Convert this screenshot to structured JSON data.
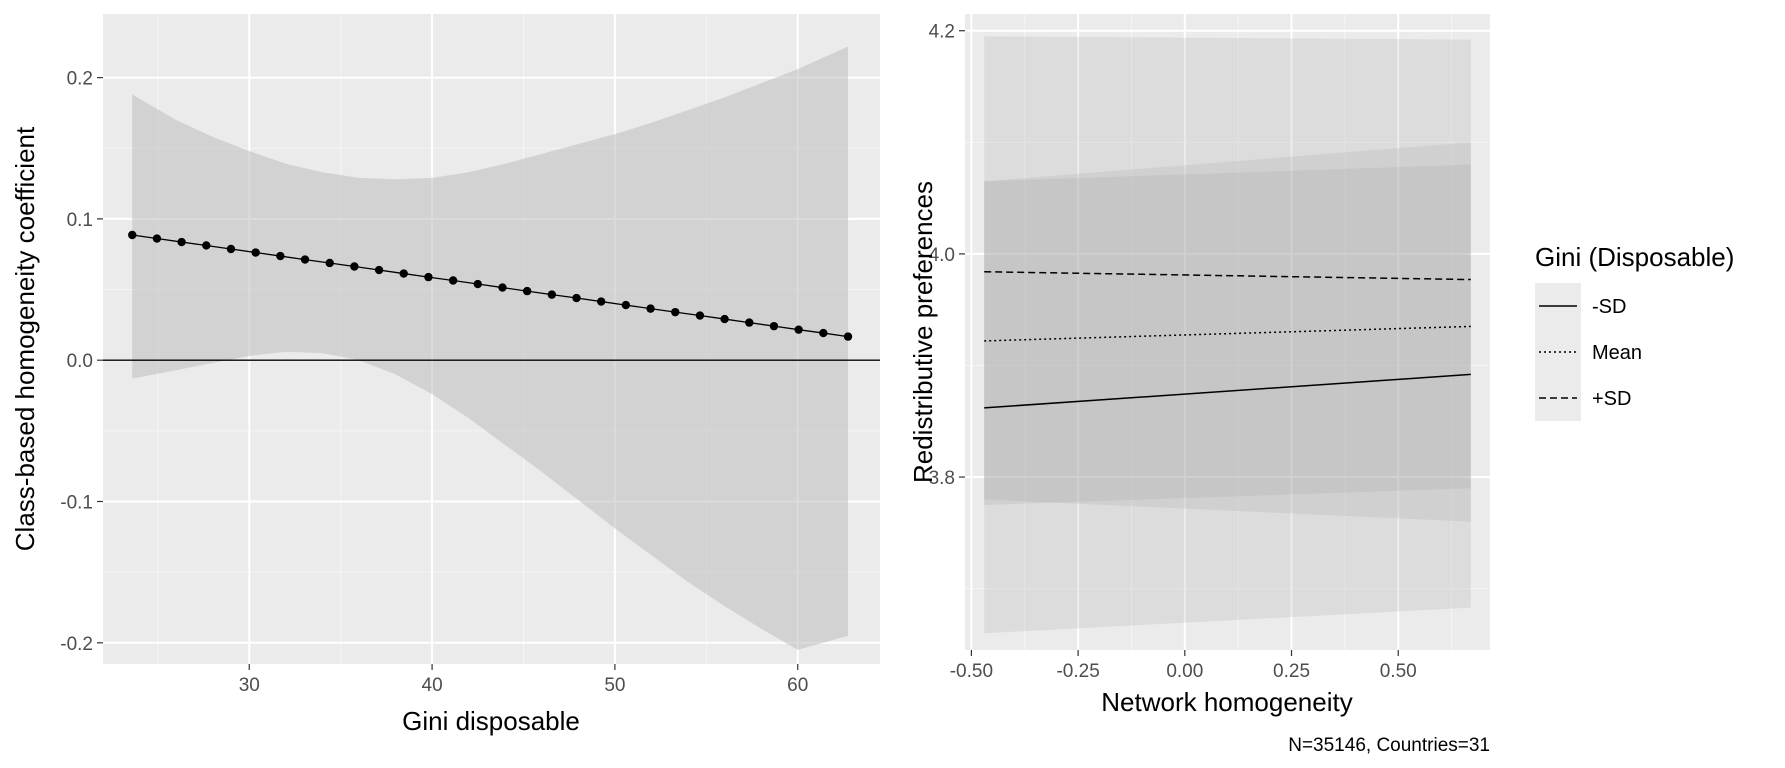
{
  "chart_data": [
    {
      "type": "line",
      "xlabel": "Gini disposable",
      "ylabel": "Class-based homogeneity coefficient",
      "xlim": [
        22,
        64.5
      ],
      "ylim": [
        -0.215,
        0.245
      ],
      "xticks": [
        30,
        40,
        50,
        60
      ],
      "xtick_labels": [
        "30",
        "40",
        "50",
        "60"
      ],
      "yticks": [
        -0.2,
        -0.1,
        0.0,
        0.1,
        0.2
      ],
      "ytick_labels": [
        "-0.2",
        "-0.1",
        "0.0",
        "0.1",
        "0.2"
      ],
      "grid": true,
      "reference_line_y": 0,
      "points": {
        "x": [
          23.6,
          24.95,
          26.3,
          27.65,
          29.0,
          30.35,
          31.7,
          33.05,
          34.4,
          35.75,
          37.1,
          38.45,
          39.8,
          41.15,
          42.5,
          43.85,
          45.2,
          46.55,
          47.9,
          49.25,
          50.6,
          51.95,
          53.3,
          54.65,
          56.0,
          57.35,
          58.7,
          60.05,
          61.4,
          62.75
        ],
        "y": [
          0.0886,
          0.0861,
          0.0836,
          0.0812,
          0.0787,
          0.0762,
          0.0737,
          0.0712,
          0.0688,
          0.0663,
          0.0638,
          0.0613,
          0.0588,
          0.0564,
          0.0539,
          0.0514,
          0.0489,
          0.0464,
          0.044,
          0.0415,
          0.039,
          0.0365,
          0.034,
          0.0316,
          0.0291,
          0.0266,
          0.0241,
          0.0216,
          0.0192,
          0.0167
        ]
      },
      "ribbon": {
        "x": [
          23.6,
          26,
          28,
          30,
          32,
          34,
          36,
          38,
          40,
          42,
          44,
          46,
          48,
          50,
          52,
          54,
          56,
          58,
          60,
          62.75
        ],
        "lower": [
          -0.013,
          -0.007,
          -0.002,
          0.003,
          0.006,
          0.005,
          0.0,
          -0.01,
          -0.024,
          -0.041,
          -0.06,
          -0.079,
          -0.099,
          -0.119,
          -0.138,
          -0.157,
          -0.174,
          -0.19,
          -0.205,
          -0.195
        ],
        "upper": [
          0.188,
          0.17,
          0.158,
          0.148,
          0.139,
          0.133,
          0.129,
          0.128,
          0.129,
          0.133,
          0.139,
          0.146,
          0.153,
          0.16,
          0.168,
          0.177,
          0.186,
          0.196,
          0.206,
          0.222
        ]
      }
    },
    {
      "type": "line",
      "xlabel": "Network homogeneity",
      "ylabel": "Redistributive preferences",
      "xlim": [
        -0.515,
        0.715
      ],
      "ylim": [
        3.645,
        4.215
      ],
      "xticks": [
        -0.5,
        -0.25,
        0.0,
        0.25,
        0.5
      ],
      "xtick_labels": [
        "-0.50",
        "-0.25",
        "0.00",
        "0.25",
        "0.50"
      ],
      "yticks": [
        3.8,
        4.0,
        4.2
      ],
      "ytick_labels": [
        "3.8",
        "4.0",
        "4.2"
      ],
      "grid": true,
      "legend": {
        "title": "Gini (Disposable)",
        "position": "right",
        "entries": [
          "-SD",
          "Mean",
          "+SD"
        ]
      },
      "series": [
        {
          "name": "-SD",
          "linetype": "solid",
          "x": [
            -0.47,
            0.67
          ],
          "y": [
            3.862,
            3.892
          ],
          "ribbon_x": [
            -0.47,
            0.67
          ],
          "lower": [
            3.775,
            3.79
          ],
          "upper": [
            4.065,
            4.08
          ]
        },
        {
          "name": "Mean",
          "linetype": "dotted",
          "x": [
            -0.47,
            0.67
          ],
          "y": [
            3.922,
            3.935
          ],
          "ribbon_x": [
            -0.47,
            0.67
          ],
          "lower": [
            3.78,
            3.76
          ],
          "upper": [
            4.065,
            4.1
          ]
        },
        {
          "name": "+SD",
          "linetype": "dashed",
          "x": [
            -0.47,
            0.67
          ],
          "y": [
            3.984,
            3.977
          ],
          "ribbon_x": [
            -0.47,
            0.67
          ],
          "lower": [
            3.66,
            3.683
          ],
          "upper": [
            4.195,
            4.192
          ]
        }
      ],
      "caption": "N=35146, Countries=31"
    }
  ]
}
